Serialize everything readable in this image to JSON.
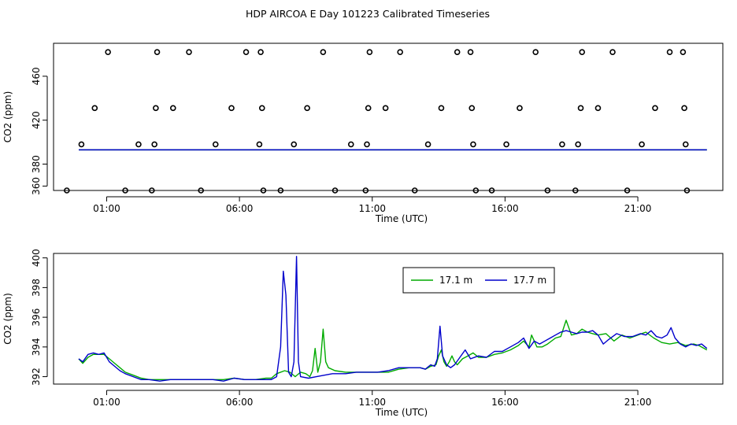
{
  "title": "HDP AIRCOA E  Day 101223  Calibrated Timeseries",
  "chart_data": [
    {
      "type": "scatter",
      "xlabel": "Time (UTC)",
      "ylabel": "CO2 (ppm)",
      "x_ticks": [
        {
          "label": "01:00",
          "hour": 1
        },
        {
          "label": "06:00",
          "hour": 6
        },
        {
          "label": "11:00",
          "hour": 11
        },
        {
          "label": "16:00",
          "hour": 16
        },
        {
          "label": "21:00",
          "hour": 21
        }
      ],
      "xlim": [
        -1.0,
        24.2
      ],
      "ylim": [
        356,
        490
      ],
      "y_ticks": [
        360,
        380,
        420,
        460
      ],
      "lines": [
        {
          "color": "#00aa00",
          "x": [
            -0.05,
            23.6
          ],
          "y": [
            393,
            393
          ]
        },
        {
          "color": "#0000cc",
          "x": [
            -0.05,
            23.6
          ],
          "y": [
            393,
            393
          ]
        }
      ],
      "points": [
        {
          "x": -0.5,
          "y": 356
        },
        {
          "x": 0.05,
          "y": 398
        },
        {
          "x": 0.55,
          "y": 431
        },
        {
          "x": 1.05,
          "y": 482
        },
        {
          "x": 1.7,
          "y": 356
        },
        {
          "x": 2.2,
          "y": 398
        },
        {
          "x": 2.7,
          "y": 356
        },
        {
          "x": 2.8,
          "y": 398
        },
        {
          "x": 2.85,
          "y": 431
        },
        {
          "x": 2.9,
          "y": 482
        },
        {
          "x": 3.5,
          "y": 431
        },
        {
          "x": 4.1,
          "y": 482
        },
        {
          "x": 4.55,
          "y": 356
        },
        {
          "x": 5.1,
          "y": 398
        },
        {
          "x": 5.7,
          "y": 431
        },
        {
          "x": 6.25,
          "y": 482
        },
        {
          "x": 6.75,
          "y": 398
        },
        {
          "x": 6.8,
          "y": 482
        },
        {
          "x": 6.85,
          "y": 431
        },
        {
          "x": 6.9,
          "y": 356
        },
        {
          "x": 7.55,
          "y": 356
        },
        {
          "x": 8.05,
          "y": 398
        },
        {
          "x": 8.55,
          "y": 431
        },
        {
          "x": 9.15,
          "y": 482
        },
        {
          "x": 9.6,
          "y": 356
        },
        {
          "x": 10.2,
          "y": 398
        },
        {
          "x": 10.75,
          "y": 356
        },
        {
          "x": 10.8,
          "y": 398
        },
        {
          "x": 10.85,
          "y": 431
        },
        {
          "x": 10.9,
          "y": 482
        },
        {
          "x": 11.5,
          "y": 431
        },
        {
          "x": 12.05,
          "y": 482
        },
        {
          "x": 12.6,
          "y": 356
        },
        {
          "x": 13.1,
          "y": 398
        },
        {
          "x": 13.6,
          "y": 431
        },
        {
          "x": 14.2,
          "y": 482
        },
        {
          "x": 14.7,
          "y": 482
        },
        {
          "x": 14.75,
          "y": 431
        },
        {
          "x": 14.8,
          "y": 398
        },
        {
          "x": 14.9,
          "y": 356
        },
        {
          "x": 15.5,
          "y": 356
        },
        {
          "x": 16.05,
          "y": 398
        },
        {
          "x": 16.55,
          "y": 431
        },
        {
          "x": 17.15,
          "y": 482
        },
        {
          "x": 17.6,
          "y": 356
        },
        {
          "x": 18.15,
          "y": 398
        },
        {
          "x": 18.65,
          "y": 356
        },
        {
          "x": 18.75,
          "y": 398
        },
        {
          "x": 18.85,
          "y": 431
        },
        {
          "x": 18.9,
          "y": 482
        },
        {
          "x": 19.5,
          "y": 431
        },
        {
          "x": 20.05,
          "y": 482
        },
        {
          "x": 20.6,
          "y": 356
        },
        {
          "x": 21.15,
          "y": 398
        },
        {
          "x": 21.65,
          "y": 431
        },
        {
          "x": 22.2,
          "y": 482
        },
        {
          "x": 22.7,
          "y": 482
        },
        {
          "x": 22.75,
          "y": 431
        },
        {
          "x": 22.8,
          "y": 398
        },
        {
          "x": 22.85,
          "y": 356
        }
      ]
    },
    {
      "type": "line",
      "xlabel": "Time (UTC)",
      "ylabel": "CO2 (ppm)",
      "x_ticks": [
        {
          "label": "01:00",
          "hour": 1
        },
        {
          "label": "06:00",
          "hour": 6
        },
        {
          "label": "11:00",
          "hour": 11
        },
        {
          "label": "16:00",
          "hour": 16
        },
        {
          "label": "21:00",
          "hour": 21
        }
      ],
      "xlim": [
        -1.0,
        24.2
      ],
      "ylim": [
        391.5,
        400.3
      ],
      "y_ticks": [
        392,
        394,
        396,
        398,
        400
      ],
      "legend": {
        "position": "top-right"
      },
      "series": [
        {
          "name": "17.1 m",
          "color": "#00aa00",
          "points": [
            [
              -0.05,
              393.2
            ],
            [
              0.1,
              392.9
            ],
            [
              0.3,
              393.3
            ],
            [
              0.5,
              393.5
            ],
            [
              0.7,
              393.5
            ],
            [
              0.9,
              393.5
            ],
            [
              1.1,
              393.2
            ],
            [
              1.3,
              392.9
            ],
            [
              1.5,
              392.6
            ],
            [
              1.7,
              392.3
            ],
            [
              2.0,
              392.1
            ],
            [
              2.3,
              391.9
            ],
            [
              2.6,
              391.8
            ],
            [
              3.0,
              391.8
            ],
            [
              3.4,
              391.8
            ],
            [
              3.8,
              391.8
            ],
            [
              4.2,
              391.8
            ],
            [
              4.6,
              391.8
            ],
            [
              5.0,
              391.8
            ],
            [
              5.4,
              391.8
            ],
            [
              5.8,
              391.9
            ],
            [
              6.2,
              391.8
            ],
            [
              6.6,
              391.8
            ],
            [
              7.0,
              391.9
            ],
            [
              7.2,
              391.9
            ],
            [
              7.4,
              392.2
            ],
            [
              7.7,
              392.4
            ],
            [
              7.9,
              392.3
            ],
            [
              8.1,
              392.0
            ],
            [
              8.3,
              392.3
            ],
            [
              8.5,
              392.2
            ],
            [
              8.65,
              392.0
            ],
            [
              8.75,
              392.4
            ],
            [
              8.85,
              393.9
            ],
            [
              8.95,
              392.3
            ],
            [
              9.05,
              393.0
            ],
            [
              9.15,
              395.2
            ],
            [
              9.25,
              393.0
            ],
            [
              9.35,
              392.6
            ],
            [
              9.6,
              392.4
            ],
            [
              10.0,
              392.3
            ],
            [
              10.4,
              392.3
            ],
            [
              10.8,
              392.3
            ],
            [
              11.2,
              392.3
            ],
            [
              11.6,
              392.3
            ],
            [
              12.0,
              392.5
            ],
            [
              12.4,
              392.6
            ],
            [
              12.8,
              392.6
            ],
            [
              13.0,
              392.5
            ],
            [
              13.2,
              392.7
            ],
            [
              13.4,
              392.8
            ],
            [
              13.5,
              393.4
            ],
            [
              13.6,
              393.8
            ],
            [
              13.7,
              393.0
            ],
            [
              13.8,
              392.7
            ],
            [
              13.9,
              393.0
            ],
            [
              14.0,
              393.4
            ],
            [
              14.1,
              393.0
            ],
            [
              14.2,
              392.8
            ],
            [
              14.4,
              393.2
            ],
            [
              14.6,
              393.4
            ],
            [
              14.8,
              393.6
            ],
            [
              15.0,
              393.3
            ],
            [
              15.3,
              393.3
            ],
            [
              15.6,
              393.5
            ],
            [
              15.9,
              393.6
            ],
            [
              16.2,
              393.8
            ],
            [
              16.5,
              394.1
            ],
            [
              16.7,
              394.4
            ],
            [
              16.9,
              394.0
            ],
            [
              17.0,
              394.8
            ],
            [
              17.2,
              394.0
            ],
            [
              17.4,
              394.0
            ],
            [
              17.6,
              394.2
            ],
            [
              17.9,
              394.6
            ],
            [
              18.1,
              394.7
            ],
            [
              18.3,
              395.8
            ],
            [
              18.5,
              394.8
            ],
            [
              18.7,
              394.9
            ],
            [
              18.9,
              395.2
            ],
            [
              19.1,
              395.0
            ],
            [
              19.3,
              394.9
            ],
            [
              19.5,
              394.8
            ],
            [
              19.8,
              394.9
            ],
            [
              20.1,
              394.4
            ],
            [
              20.4,
              394.8
            ],
            [
              20.7,
              394.6
            ],
            [
              21.0,
              394.8
            ],
            [
              21.3,
              395.0
            ],
            [
              21.6,
              394.6
            ],
            [
              21.9,
              394.3
            ],
            [
              22.2,
              394.2
            ],
            [
              22.5,
              394.3
            ],
            [
              22.8,
              394.1
            ],
            [
              23.1,
              394.2
            ],
            [
              23.3,
              394.1
            ],
            [
              23.6,
              393.8
            ]
          ]
        },
        {
          "name": "17.7 m",
          "color": "#0000cc",
          "points": [
            [
              -0.05,
              393.2
            ],
            [
              0.1,
              393.0
            ],
            [
              0.3,
              393.5
            ],
            [
              0.5,
              393.6
            ],
            [
              0.7,
              393.5
            ],
            [
              0.9,
              393.6
            ],
            [
              1.1,
              393.0
            ],
            [
              1.3,
              392.7
            ],
            [
              1.5,
              392.4
            ],
            [
              1.7,
              392.2
            ],
            [
              2.0,
              392.0
            ],
            [
              2.3,
              391.8
            ],
            [
              2.6,
              391.8
            ],
            [
              3.0,
              391.7
            ],
            [
              3.4,
              391.8
            ],
            [
              3.8,
              391.8
            ],
            [
              4.2,
              391.8
            ],
            [
              4.6,
              391.8
            ],
            [
              5.0,
              391.8
            ],
            [
              5.4,
              391.7
            ],
            [
              5.8,
              391.9
            ],
            [
              6.2,
              391.8
            ],
            [
              6.6,
              391.8
            ],
            [
              7.0,
              391.8
            ],
            [
              7.2,
              391.8
            ],
            [
              7.4,
              392.0
            ],
            [
              7.55,
              394.0
            ],
            [
              7.65,
              399.1
            ],
            [
              7.75,
              397.5
            ],
            [
              7.85,
              392.3
            ],
            [
              7.95,
              392.0
            ],
            [
              8.05,
              393.0
            ],
            [
              8.15,
              400.1
            ],
            [
              8.22,
              393.0
            ],
            [
              8.3,
              392.0
            ],
            [
              8.6,
              391.9
            ],
            [
              8.9,
              392.0
            ],
            [
              9.2,
              392.1
            ],
            [
              9.5,
              392.2
            ],
            [
              10.0,
              392.2
            ],
            [
              10.4,
              392.3
            ],
            [
              10.8,
              392.3
            ],
            [
              11.2,
              392.3
            ],
            [
              11.6,
              392.4
            ],
            [
              12.0,
              392.6
            ],
            [
              12.4,
              392.6
            ],
            [
              12.8,
              392.6
            ],
            [
              13.0,
              392.5
            ],
            [
              13.2,
              392.8
            ],
            [
              13.35,
              392.7
            ],
            [
              13.45,
              393.2
            ],
            [
              13.55,
              395.4
            ],
            [
              13.65,
              393.4
            ],
            [
              13.8,
              392.8
            ],
            [
              13.95,
              392.6
            ],
            [
              14.1,
              392.8
            ],
            [
              14.3,
              393.3
            ],
            [
              14.5,
              393.8
            ],
            [
              14.7,
              393.2
            ],
            [
              15.0,
              393.4
            ],
            [
              15.3,
              393.3
            ],
            [
              15.6,
              393.7
            ],
            [
              15.9,
              393.7
            ],
            [
              16.2,
              394.0
            ],
            [
              16.5,
              394.3
            ],
            [
              16.7,
              394.6
            ],
            [
              16.9,
              393.9
            ],
            [
              17.1,
              394.4
            ],
            [
              17.3,
              394.2
            ],
            [
              17.5,
              394.4
            ],
            [
              17.7,
              394.6
            ],
            [
              17.9,
              394.8
            ],
            [
              18.1,
              395.0
            ],
            [
              18.3,
              395.1
            ],
            [
              18.5,
              395.0
            ],
            [
              18.7,
              394.9
            ],
            [
              18.9,
              395.0
            ],
            [
              19.1,
              395.0
            ],
            [
              19.3,
              395.1
            ],
            [
              19.5,
              394.8
            ],
            [
              19.7,
              394.2
            ],
            [
              19.9,
              394.5
            ],
            [
              20.2,
              394.9
            ],
            [
              20.5,
              394.7
            ],
            [
              20.8,
              394.7
            ],
            [
              21.1,
              394.9
            ],
            [
              21.3,
              394.8
            ],
            [
              21.5,
              395.1
            ],
            [
              21.7,
              394.7
            ],
            [
              21.9,
              394.6
            ],
            [
              22.1,
              394.8
            ],
            [
              22.25,
              395.3
            ],
            [
              22.4,
              394.6
            ],
            [
              22.6,
              394.2
            ],
            [
              22.8,
              394.0
            ],
            [
              23.0,
              394.2
            ],
            [
              23.2,
              394.1
            ],
            [
              23.4,
              394.2
            ],
            [
              23.6,
              393.9
            ]
          ]
        }
      ]
    }
  ]
}
